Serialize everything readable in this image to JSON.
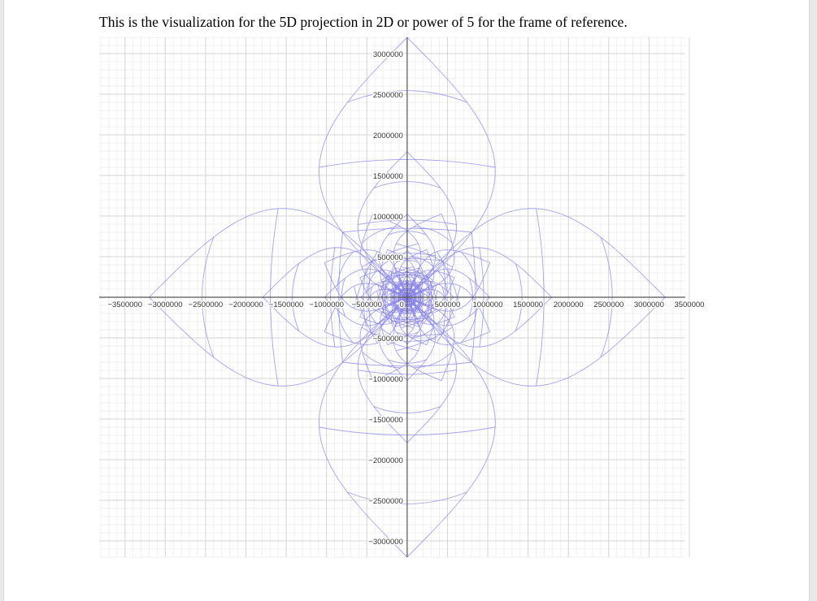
{
  "document": {
    "caption": "This is the visualization for the 5D projection in 2D or power of 5 for the frame of reference."
  },
  "chart_data": {
    "type": "line",
    "title": "",
    "xlabel": "",
    "ylabel": "",
    "xlim": [
      -3820000,
      3450000
    ],
    "ylim": [
      -3200000,
      3200000
    ],
    "x_ticks": [
      -3500000,
      -3000000,
      -2500000,
      -2000000,
      -1500000,
      -1000000,
      -500000,
      500000,
      1000000,
      1500000,
      2000000,
      2500000,
      3000000,
      3500000
    ],
    "y_ticks": [
      -3000000,
      -2500000,
      -2000000,
      -1500000,
      -1000000,
      -500000,
      500000,
      1000000,
      1500000,
      2000000,
      2500000,
      3000000
    ],
    "x_tick_labels": [
      "−3500000",
      "−3000000",
      "−2500000",
      "−2000000",
      "−1500000",
      "−1000000",
      "−500000",
      "500000",
      "1000000",
      "1500000",
      "2000000",
      "2500000",
      "3000000",
      "3500000"
    ],
    "y_tick_labels": [
      "−3000000",
      "−2500000",
      "−2000000",
      "−1500000",
      "−1000000",
      "−500000",
      "500000",
      "1000000",
      "1500000",
      "2000000",
      "2500000",
      "3000000"
    ],
    "origin_label": "0",
    "grid": true,
    "curve_color": "#8a86e6",
    "description_series": [
      {
        "petal_tip": [
          0,
          3200000
        ],
        "petal_base_half_width": 1180000
      },
      {
        "petal_tip": [
          0,
          -3200000
        ],
        "petal_base_half_width": 1180000
      },
      {
        "petal_tip": [
          3200000,
          0
        ],
        "petal_base_half_width": 1180000
      },
      {
        "petal_tip": [
          -3200000,
          0
        ],
        "petal_base_half_width": 1180000
      }
    ],
    "nested_levels": [
      1,
      0.56,
      0.32,
      0.18,
      0.1,
      0.055
    ],
    "petal_bulge": 1.0
  }
}
